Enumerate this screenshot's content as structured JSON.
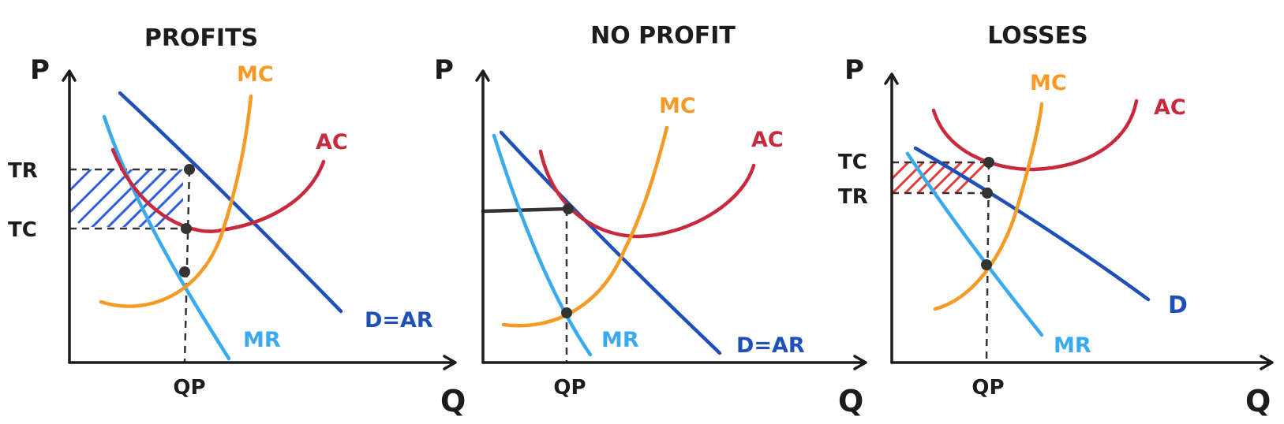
{
  "colors": {
    "ink": "#1c1c1c",
    "demand": "#1f4fb8",
    "mr": "#3aaaf0",
    "mc": "#f59a24",
    "ac": "#c8293d",
    "profit_hatch": "#2f5fe0",
    "loss_hatch": "#e23c3c",
    "dot": "#333333"
  },
  "panels": [
    {
      "title": "PROFITS",
      "y_axis": "P",
      "x_axis": "Q",
      "q_tick": "QP",
      "price_ticks": [
        "TR",
        "TC"
      ],
      "curves": {
        "mc": "MC",
        "ac": "AC",
        "demand": "D=AR",
        "mr": "MR"
      }
    },
    {
      "title": "NO PROFIT",
      "y_axis": "P",
      "x_axis": "Q",
      "q_tick": "QP",
      "price_ticks": [],
      "curves": {
        "mc": "MC",
        "ac": "AC",
        "demand": "D=AR",
        "mr": "MR"
      }
    },
    {
      "title": "LOSSES",
      "y_axis": "P",
      "x_axis": "Q",
      "q_tick": "QP",
      "price_ticks": [
        "TC",
        "TR"
      ],
      "curves": {
        "mc": "MC",
        "ac": "AC",
        "demand": "D",
        "mr": "MR"
      }
    }
  ]
}
